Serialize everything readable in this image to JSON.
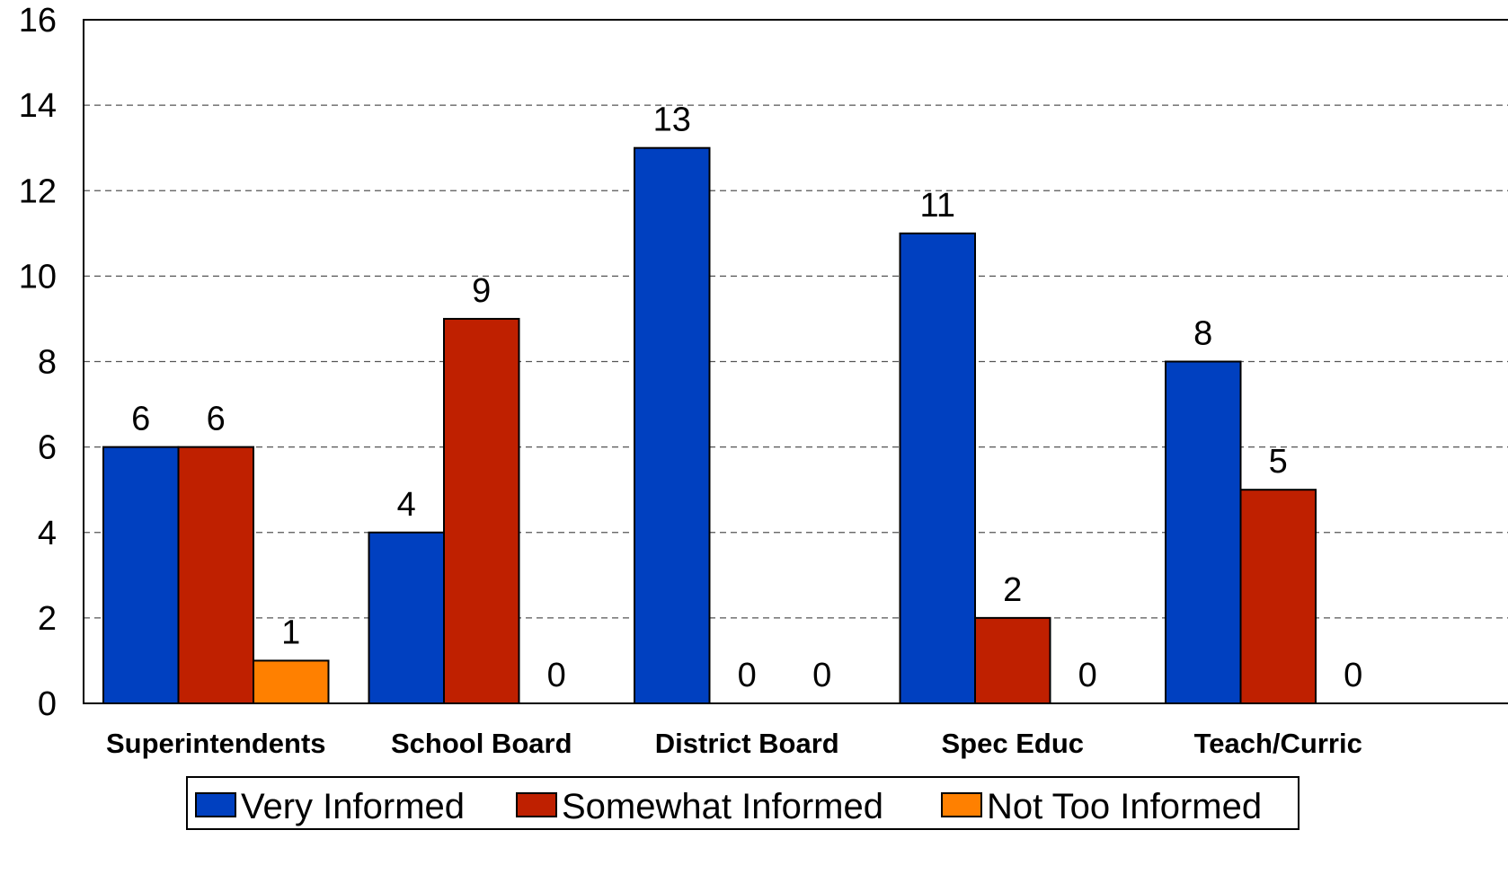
{
  "chart_data": {
    "type": "bar",
    "categories": [
      "Superintendents",
      "School Board",
      "District Board",
      "Spec Educ",
      "Teach/Curric"
    ],
    "series": [
      {
        "name": "Very Informed",
        "color": "#0040C0",
        "values": [
          6,
          4,
          13,
          11,
          8
        ]
      },
      {
        "name": "Somewhat Informed",
        "color": "#BF2000",
        "values": [
          6,
          9,
          0,
          2,
          5
        ]
      },
      {
        "name": "Not Too Informed",
        "color": "#FF8000",
        "values": [
          1,
          0,
          0,
          0,
          0
        ]
      }
    ],
    "ylim": [
      0,
      16
    ],
    "yticks": [
      0,
      2,
      4,
      6,
      8,
      10,
      12,
      14,
      16
    ],
    "grid": "horizontal dashed",
    "legend_position": "bottom",
    "data_labels": true
  }
}
